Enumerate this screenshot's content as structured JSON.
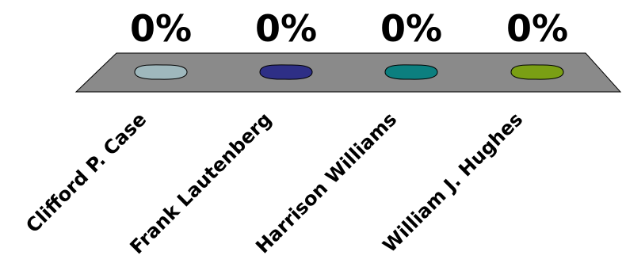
{
  "chart_data": {
    "type": "bar",
    "categories": [
      "Clifford P. Case",
      "Frank Lautenberg",
      "Harrison Williams",
      "William J. Hughes"
    ],
    "values": [
      0,
      0,
      0,
      0
    ],
    "value_labels": [
      "0%",
      "0%",
      "0%",
      "0%"
    ],
    "series_colors": [
      "#9fb8bd",
      "#2e2f86",
      "#0c7f7f",
      "#7a9f14"
    ],
    "floor_color": "#8a8a8a",
    "title": "",
    "xlabel": "",
    "ylabel": "",
    "ylim": [
      0,
      100
    ],
    "grid": false,
    "legend": "none"
  }
}
